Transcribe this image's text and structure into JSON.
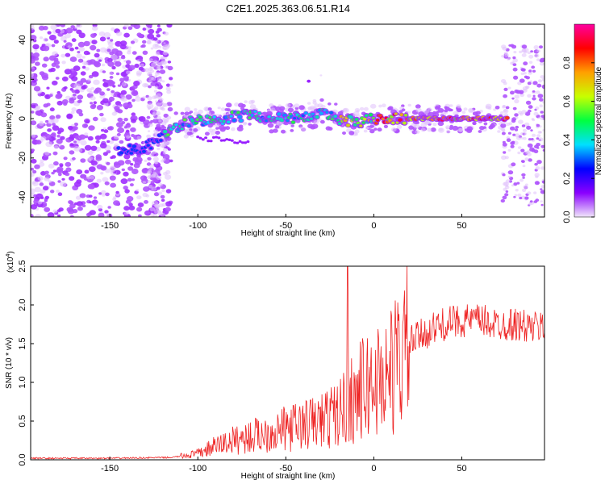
{
  "title": "C2E1.2025.363.06.51.R14",
  "chart_data": [
    {
      "type": "heatmap",
      "name": "spectrogram",
      "xlabel": "Height of straight line (km)",
      "ylabel": "Frequency (Hz)",
      "xlim": [
        -195,
        97
      ],
      "ylim": [
        -50,
        48
      ],
      "xticks": [
        -150,
        -100,
        -50,
        0,
        50
      ],
      "yticks": [
        -40,
        -20,
        0,
        20,
        40
      ],
      "ridge": {
        "description_points_x": [
          -145,
          -140,
          -130,
          -120,
          -110,
          -100,
          -90,
          -80,
          -70,
          -60,
          -50,
          -40,
          -30,
          -20,
          -10,
          0,
          10,
          20,
          30,
          40,
          50,
          60,
          70,
          80,
          90
        ],
        "description_points_y": [
          -16,
          -16,
          -15,
          -8,
          -3,
          -1,
          -1,
          1,
          2,
          0,
          0,
          1,
          3,
          0,
          -2,
          0,
          0,
          0,
          0,
          0,
          0,
          0,
          0,
          0,
          0
        ]
      },
      "colorbar": {
        "label": "Normalized spectral amplitude",
        "range": [
          0,
          1
        ],
        "ticks": [
          "0.0",
          "0.2",
          "0.4",
          "0.6",
          "0.8"
        ],
        "colors": [
          "#f0e6fa",
          "#8a00ff",
          "#0000ff",
          "#00e0ff",
          "#00ff40",
          "#c8ff00",
          "#ffa000",
          "#ff0000",
          "#ff00a0"
        ]
      }
    },
    {
      "type": "line",
      "name": "snr",
      "xlabel": "Height of straight line (km)",
      "ylabel": "SNR (10 * v/v)",
      "yscale_label": "(x10",
      "yscale_exp": "4",
      "yscale_close": ")",
      "xlim": [
        -195,
        97
      ],
      "ylim": [
        0,
        2.5
      ],
      "xticks": [
        -150,
        -100,
        -50,
        0,
        50
      ],
      "yticks": [
        "0.0",
        "0.5",
        "1.0",
        "1.5",
        "2.0",
        "2.5"
      ],
      "color": "#ee2222",
      "trend_x": [
        -195,
        -150,
        -115,
        -100,
        -90,
        -80,
        -70,
        -60,
        -50,
        -40,
        -30,
        -20,
        -10,
        0,
        10,
        20,
        30,
        40,
        50,
        60,
        70,
        80,
        90,
        97
      ],
      "trend_y": [
        0.02,
        0.02,
        0.03,
        0.08,
        0.18,
        0.25,
        0.3,
        0.35,
        0.4,
        0.45,
        0.5,
        0.6,
        0.85,
        1.0,
        1.15,
        1.5,
        1.65,
        1.75,
        1.8,
        1.8,
        1.75,
        1.75,
        1.7,
        1.72
      ],
      "spike_x": -15,
      "spike_y": 2.5
    }
  ]
}
